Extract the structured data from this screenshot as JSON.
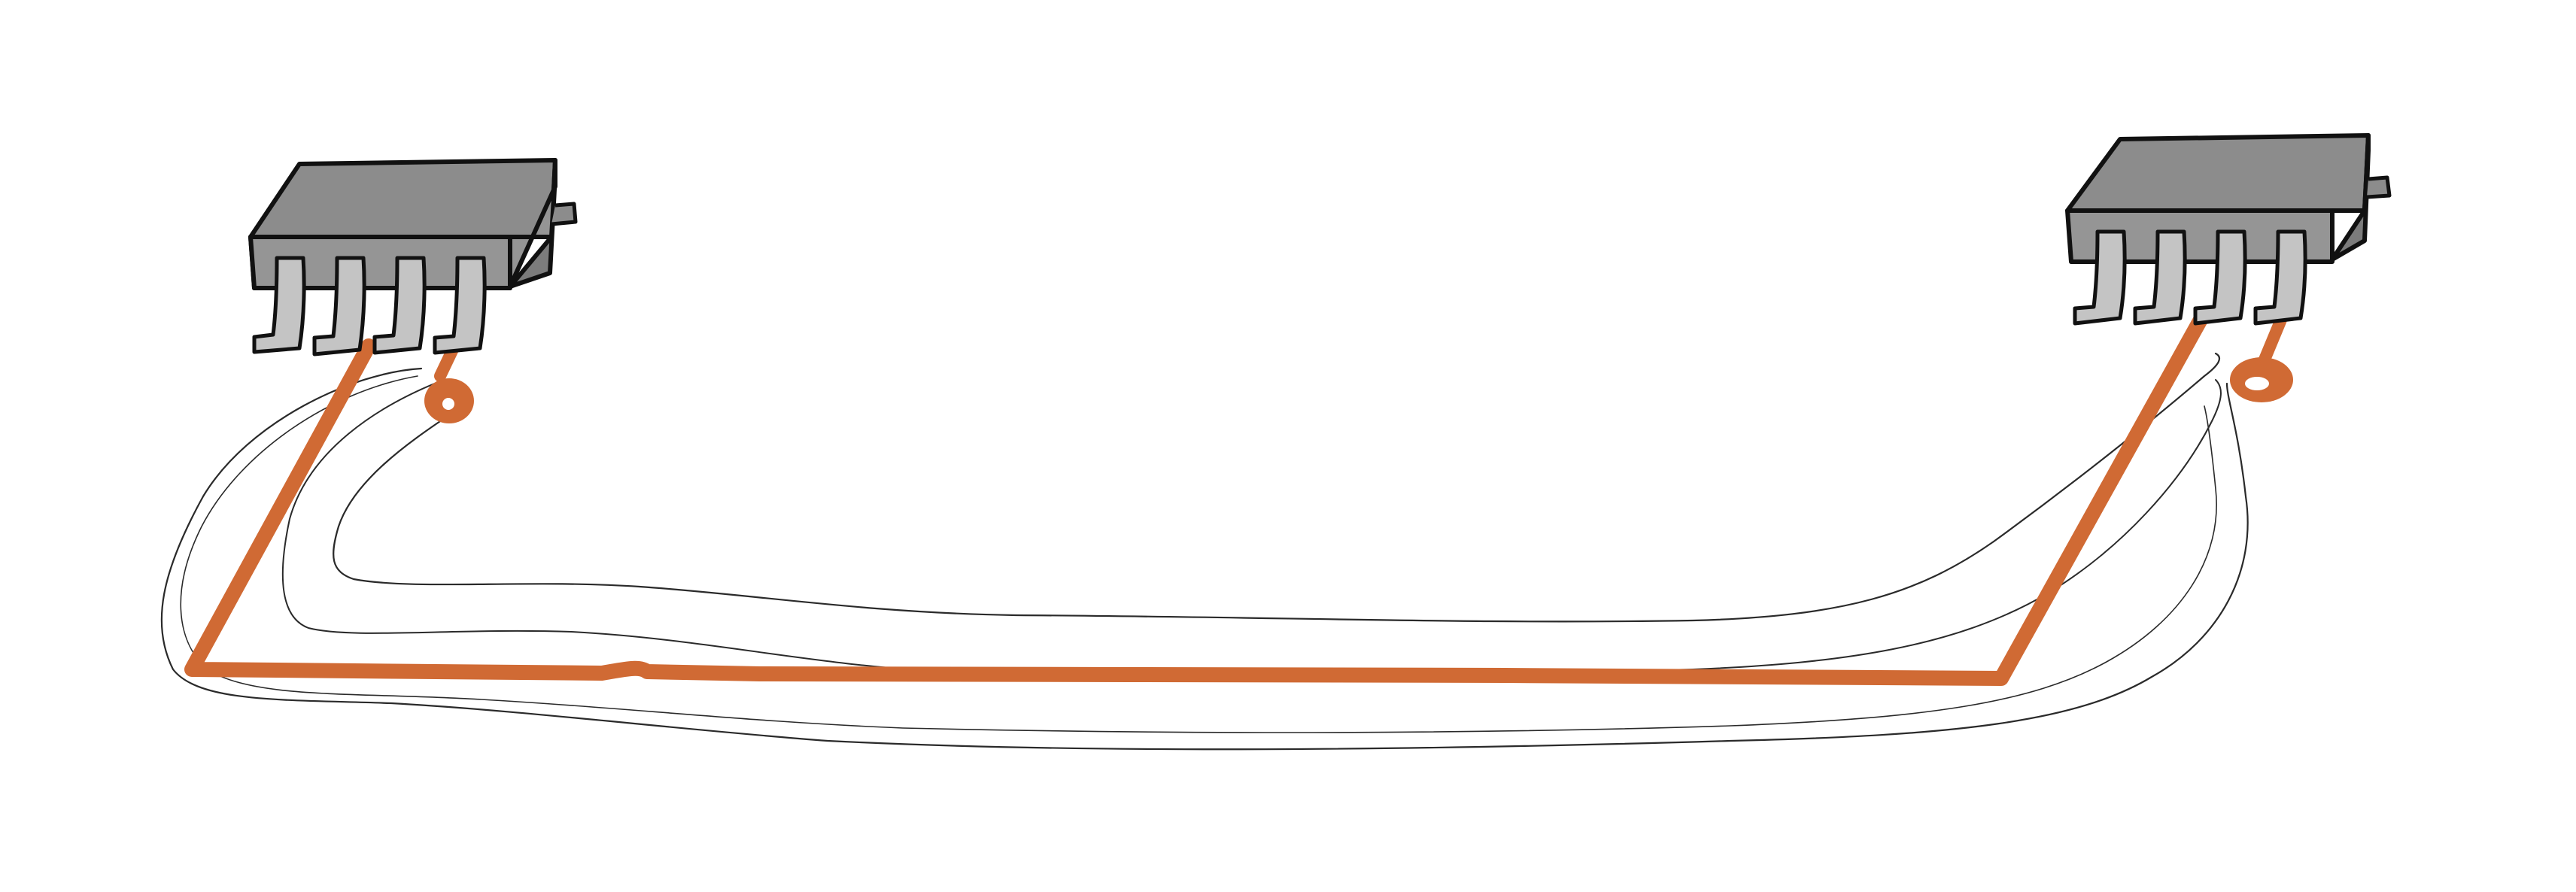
{
  "diagram": {
    "background_color": "#ffffff",
    "components": [
      {
        "kind": "chip",
        "icon": "soic-chip-icon",
        "pin_count": 4
      },
      {
        "kind": "chip",
        "icon": "soic-chip-icon",
        "pin_count": 4
      }
    ],
    "colors": {
      "trace": "#d06a34",
      "chip_top": "#8c8c8c",
      "chip_front": "#959595",
      "chip_side": "#7c7c7c",
      "pin_face": "#c4c4c4",
      "outline": "#111111",
      "sketch_line": "#2a2a2a"
    }
  }
}
